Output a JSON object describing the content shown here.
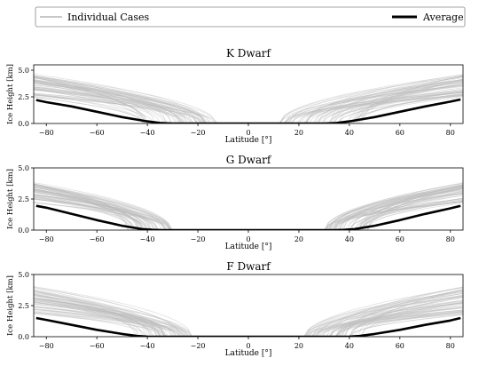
{
  "legend": {
    "items": [
      {
        "label": "Individual Cases",
        "color": "#c8c8c8"
      },
      {
        "label": "Average",
        "color": "#000000"
      }
    ]
  },
  "colors": {
    "cases": "#bdbdbd",
    "average": "#000000",
    "axis": "#000000"
  },
  "chart_data": [
    {
      "type": "line",
      "title": "K Dwarf",
      "xlabel": "Latitude [°]",
      "ylabel": "Ice Height [km]",
      "xlim": [
        -85,
        85
      ],
      "ylim": [
        0,
        5.5
      ],
      "xticks": [
        -80,
        -60,
        -40,
        -20,
        0,
        20,
        40,
        60,
        80
      ],
      "yticks": [
        0.0,
        2.5,
        5.0
      ],
      "grid": false,
      "legend": "top (shared)",
      "cases": {
        "count": 60,
        "height_range": [
          2.6,
          4.8
        ],
        "edge_lat_range": [
          12,
          45
        ]
      },
      "series": [
        {
          "name": "Average",
          "x": [
            -84,
            -80,
            -70,
            -60,
            -50,
            -40,
            -35,
            -30,
            30,
            35,
            40,
            50,
            60,
            70,
            80,
            84
          ],
          "values": [
            2.2,
            2.0,
            1.6,
            1.1,
            0.6,
            0.2,
            0.05,
            0.0,
            0.0,
            0.05,
            0.2,
            0.6,
            1.1,
            1.6,
            2.05,
            2.25
          ]
        }
      ]
    },
    {
      "type": "line",
      "title": "G Dwarf",
      "xlabel": "Latitude [°]",
      "ylabel": "Ice Height [km]",
      "xlim": [
        -85,
        85
      ],
      "ylim": [
        0,
        5.0
      ],
      "xticks": [
        -80,
        -60,
        -40,
        -20,
        0,
        20,
        40,
        60,
        80
      ],
      "yticks": [
        0.0,
        2.5,
        5.0
      ],
      "grid": false,
      "cases": {
        "count": 60,
        "height_range": [
          2.3,
          4.0
        ],
        "edge_lat_range": [
          30,
          48
        ]
      },
      "series": [
        {
          "name": "Average",
          "x": [
            -84,
            -80,
            -70,
            -60,
            -50,
            -42,
            -38,
            -34,
            34,
            38,
            42,
            50,
            60,
            70,
            80,
            84
          ],
          "values": [
            1.95,
            1.8,
            1.3,
            0.8,
            0.35,
            0.08,
            0.02,
            0.0,
            0.0,
            0.02,
            0.08,
            0.35,
            0.8,
            1.3,
            1.75,
            1.95
          ]
        }
      ]
    },
    {
      "type": "line",
      "title": "F Dwarf",
      "xlabel": "Latitude [°]",
      "ylabel": "Ice Height [km]",
      "xlim": [
        -85,
        85
      ],
      "ylim": [
        0,
        5.0
      ],
      "xticks": [
        -80,
        -60,
        -40,
        -20,
        0,
        20,
        40,
        60,
        80
      ],
      "yticks": [
        0.0,
        2.5,
        5.0
      ],
      "grid": false,
      "cases": {
        "count": 60,
        "height_range": [
          1.8,
          4.2
        ],
        "edge_lat_range": [
          22,
          45
        ]
      },
      "series": [
        {
          "name": "Average",
          "x": [
            -84,
            -80,
            -70,
            -60,
            -50,
            -44,
            -40,
            -36,
            36,
            40,
            44,
            50,
            60,
            70,
            80,
            84
          ],
          "values": [
            1.5,
            1.35,
            0.95,
            0.55,
            0.22,
            0.06,
            0.01,
            0.0,
            0.0,
            0.01,
            0.06,
            0.22,
            0.55,
            0.95,
            1.3,
            1.5
          ]
        }
      ]
    }
  ]
}
